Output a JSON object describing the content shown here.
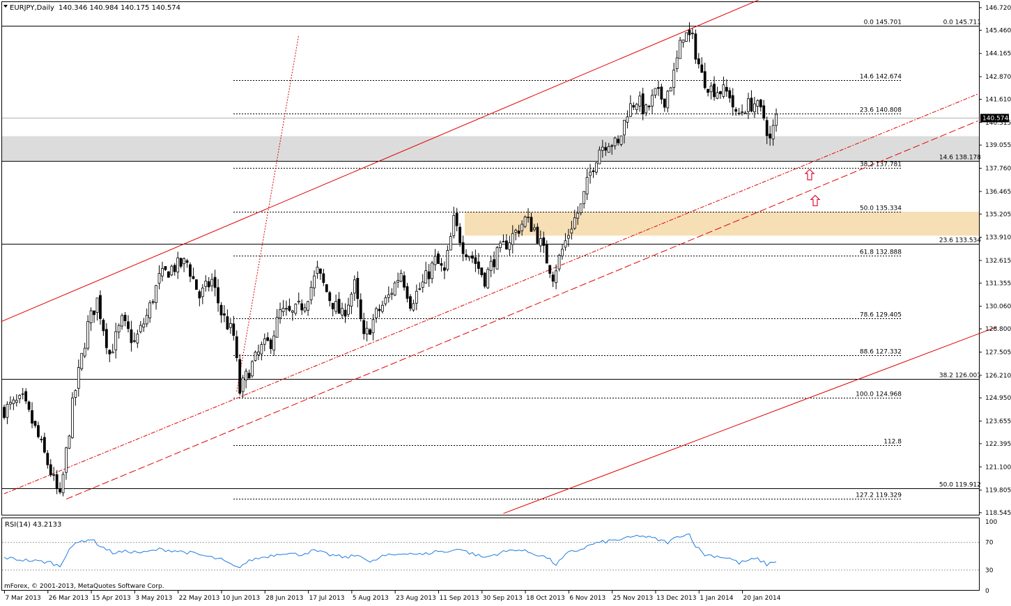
{
  "header": {
    "dropdown_icon": "triangle-down-icon",
    "symbol": "EURJPY,Daily",
    "ohlc": "140.346 140.984 140.175 140.574"
  },
  "footer": {
    "copyright": "mForex, © 2001-2013, MetaQuotes Software Corp."
  },
  "colors": {
    "candle": "#000000",
    "channel": "#e00000",
    "grid": "#000000",
    "supply_zone": "#f7dfb5",
    "grey_zone": "#dcdcdc",
    "rsi_line": "#1e7be0",
    "rsi_level": "#9a9a9a",
    "arrow": "#e0103a"
  },
  "chart_data": [
    {
      "type": "candlestick",
      "title": "EURJPY,Daily",
      "ylim": [
        118.545,
        146.72
      ],
      "y_ticks": [
        "146.720",
        "145.460",
        "144.165",
        "142.870",
        "141.610",
        "140.315",
        "139.055",
        "137.760",
        "136.465",
        "135.205",
        "133.910",
        "132.615",
        "131.355",
        "130.060",
        "128.800",
        "127.505",
        "126.210",
        "124.950",
        "123.655",
        "122.395",
        "121.100",
        "119.805",
        "118.545"
      ],
      "last_price": "140.574",
      "x_ticks": [
        "7 Mar 2013",
        "26 Mar 2013",
        "15 Apr 2013",
        "3 May 2013",
        "22 May 2013",
        "10 Jun 2013",
        "28 Jun 2013",
        "17 Jul 2013",
        "5 Aug 2013",
        "23 Aug 2013",
        "11 Sep 2013",
        "30 Sep 2013",
        "18 Oct 2013",
        "6 Nov 2013",
        "25 Nov 2013",
        "13 Dec 2013",
        "1 Jan 2014",
        "20 Jan 2014"
      ],
      "price_anchors": [
        {
          "i": 0,
          "c": 124.3
        },
        {
          "i": 6,
          "c": 124.8
        },
        {
          "i": 10,
          "c": 123.2
        },
        {
          "i": 14,
          "c": 121.3
        },
        {
          "i": 18,
          "c": 119.3
        },
        {
          "i": 22,
          "c": 124.5
        },
        {
          "i": 27,
          "c": 129.0
        },
        {
          "i": 30,
          "c": 130.4
        },
        {
          "i": 34,
          "c": 127.4
        },
        {
          "i": 38,
          "c": 129.2
        },
        {
          "i": 42,
          "c": 128.0
        },
        {
          "i": 46,
          "c": 129.5
        },
        {
          "i": 50,
          "c": 131.6
        },
        {
          "i": 54,
          "c": 132.2
        },
        {
          "i": 59,
          "c": 132.5
        },
        {
          "i": 63,
          "c": 130.6
        },
        {
          "i": 67,
          "c": 131.5
        },
        {
          "i": 70,
          "c": 129.7
        },
        {
          "i": 74,
          "c": 128.4
        },
        {
          "i": 76,
          "c": 125.3
        },
        {
          "i": 79,
          "c": 126.5
        },
        {
          "i": 83,
          "c": 127.7
        },
        {
          "i": 86,
          "c": 128.1
        },
        {
          "i": 89,
          "c": 129.7
        },
        {
          "i": 93,
          "c": 129.6
        },
        {
          "i": 97,
          "c": 130.3
        },
        {
          "i": 101,
          "c": 132.0
        },
        {
          "i": 105,
          "c": 130.5
        },
        {
          "i": 109,
          "c": 129.5
        },
        {
          "i": 113,
          "c": 131.2
        },
        {
          "i": 116,
          "c": 128.2
        },
        {
          "i": 120,
          "c": 129.6
        },
        {
          "i": 124,
          "c": 130.6
        },
        {
          "i": 128,
          "c": 132.0
        },
        {
          "i": 131,
          "c": 130.3
        },
        {
          "i": 135,
          "c": 131.3
        },
        {
          "i": 139,
          "c": 132.6
        },
        {
          "i": 142,
          "c": 131.9
        },
        {
          "i": 145,
          "c": 134.8
        },
        {
          "i": 148,
          "c": 133.4
        },
        {
          "i": 151,
          "c": 132.8
        },
        {
          "i": 155,
          "c": 131.6
        },
        {
          "i": 158,
          "c": 132.7
        },
        {
          "i": 162,
          "c": 133.6
        },
        {
          "i": 165,
          "c": 134.2
        },
        {
          "i": 168,
          "c": 134.9
        },
        {
          "i": 171,
          "c": 134.4
        },
        {
          "i": 174,
          "c": 133.1
        },
        {
          "i": 177,
          "c": 131.8
        },
        {
          "i": 180,
          "c": 133.2
        },
        {
          "i": 183,
          "c": 134.6
        },
        {
          "i": 186,
          "c": 135.6
        },
        {
          "i": 189,
          "c": 137.5
        },
        {
          "i": 192,
          "c": 138.9
        },
        {
          "i": 195,
          "c": 139.3
        },
        {
          "i": 198,
          "c": 139.0
        },
        {
          "i": 201,
          "c": 141.0
        },
        {
          "i": 204,
          "c": 141.6
        },
        {
          "i": 207,
          "c": 140.9
        },
        {
          "i": 210,
          "c": 141.9
        },
        {
          "i": 213,
          "c": 141.6
        },
        {
          "i": 216,
          "c": 143.0
        },
        {
          "i": 219,
          "c": 145.3
        },
        {
          "i": 222,
          "c": 144.9
        },
        {
          "i": 225,
          "c": 142.9
        },
        {
          "i": 228,
          "c": 142.2
        },
        {
          "i": 231,
          "c": 142.1
        },
        {
          "i": 234,
          "c": 141.9
        },
        {
          "i": 236,
          "c": 140.6
        },
        {
          "i": 239,
          "c": 141.2
        },
        {
          "i": 242,
          "c": 141.4
        },
        {
          "i": 245,
          "c": 140.6
        },
        {
          "i": 247,
          "c": 139.3
        },
        {
          "i": 249,
          "c": 140.57
        }
      ],
      "horizontal_levels": [
        {
          "price": 145.711,
          "style": "solid",
          "labels": [
            {
              "fib": "0.0",
              "value": "145.701"
            },
            {
              "fib": "0.0",
              "value": "145.711"
            }
          ]
        },
        {
          "price": 142.674,
          "style": "dotted",
          "labels": [
            {
              "fib": "14.6",
              "value": "142.674"
            }
          ]
        },
        {
          "price": 140.808,
          "style": "dotted",
          "labels": [
            {
              "fib": "23.6",
              "value": "140.808"
            }
          ]
        },
        {
          "price": 138.178,
          "style": "solid",
          "labels": [
            {
              "fib": "14.6",
              "value": "138.178"
            }
          ]
        },
        {
          "price": 137.781,
          "style": "dotted",
          "labels": [
            {
              "fib": "38.2",
              "value": "137.781"
            }
          ]
        },
        {
          "price": 135.334,
          "style": "dotted",
          "labels": [
            {
              "fib": "50.0",
              "value": "135.334"
            }
          ]
        },
        {
          "price": 133.534,
          "style": "solid",
          "labels": [
            {
              "fib": "23.6",
              "value": "133.534"
            }
          ]
        },
        {
          "price": 132.888,
          "style": "dotted",
          "labels": [
            {
              "fib": "61.8",
              "value": "132.888"
            }
          ]
        },
        {
          "price": 129.405,
          "style": "dotted",
          "labels": [
            {
              "fib": "78.6",
              "value": "129.405"
            }
          ]
        },
        {
          "price": 127.332,
          "style": "dotted",
          "labels": [
            {
              "fib": "88.6",
              "value": "127.332"
            }
          ]
        },
        {
          "price": 126.001,
          "style": "solid",
          "labels": [
            {
              "fib": "38.2",
              "value": "126.001"
            }
          ]
        },
        {
          "price": 124.968,
          "style": "dotted",
          "labels": [
            {
              "fib": "100.0",
              "value": "124.968"
            }
          ]
        },
        {
          "price": 122.33,
          "style": "dotted",
          "labels": [
            {
              "fib": "112.8",
              "value": ""
            }
          ]
        },
        {
          "price": 119.912,
          "style": "solid",
          "labels": [
            {
              "fib": "50.0",
              "value": "119.912"
            }
          ]
        },
        {
          "price": 119.329,
          "style": "dotted",
          "labels": [
            {
              "fib": "127.2",
              "value": "119.329"
            }
          ]
        }
      ],
      "zones": [
        {
          "name": "grey-zone",
          "from": 138.178,
          "to": 139.55
        },
        {
          "name": "supply-zone",
          "from": 134.0,
          "to": 135.334
        }
      ],
      "arrows": [
        {
          "price": 137.35
        },
        {
          "price": 135.9
        }
      ]
    },
    {
      "type": "line",
      "title": "RSI(14) 43.2133",
      "ylim": [
        0,
        100
      ],
      "y_ticks": [
        "100",
        "70",
        "30",
        "0"
      ],
      "levels": [
        70,
        30
      ],
      "series": [
        {
          "anchors": [
            {
              "i": 0,
              "v": 48
            },
            {
              "i": 5,
              "v": 45
            },
            {
              "i": 10,
              "v": 43
            },
            {
              "i": 15,
              "v": 41
            },
            {
              "i": 18,
              "v": 35
            },
            {
              "i": 21,
              "v": 62
            },
            {
              "i": 25,
              "v": 72
            },
            {
              "i": 28,
              "v": 75
            },
            {
              "i": 31,
              "v": 65
            },
            {
              "i": 35,
              "v": 55
            },
            {
              "i": 40,
              "v": 57
            },
            {
              "i": 45,
              "v": 55
            },
            {
              "i": 50,
              "v": 60
            },
            {
              "i": 55,
              "v": 58
            },
            {
              "i": 60,
              "v": 55
            },
            {
              "i": 65,
              "v": 50
            },
            {
              "i": 70,
              "v": 45
            },
            {
              "i": 75,
              "v": 33
            },
            {
              "i": 80,
              "v": 45
            },
            {
              "i": 85,
              "v": 50
            },
            {
              "i": 90,
              "v": 55
            },
            {
              "i": 95,
              "v": 52
            },
            {
              "i": 100,
              "v": 58
            },
            {
              "i": 105,
              "v": 52
            },
            {
              "i": 110,
              "v": 48
            },
            {
              "i": 115,
              "v": 52
            },
            {
              "i": 118,
              "v": 40
            },
            {
              "i": 122,
              "v": 50
            },
            {
              "i": 126,
              "v": 52
            },
            {
              "i": 130,
              "v": 55
            },
            {
              "i": 135,
              "v": 52
            },
            {
              "i": 140,
              "v": 58
            },
            {
              "i": 143,
              "v": 55
            },
            {
              "i": 146,
              "v": 62
            },
            {
              "i": 150,
              "v": 55
            },
            {
              "i": 155,
              "v": 48
            },
            {
              "i": 160,
              "v": 55
            },
            {
              "i": 165,
              "v": 60
            },
            {
              "i": 170,
              "v": 55
            },
            {
              "i": 175,
              "v": 48
            },
            {
              "i": 178,
              "v": 38
            },
            {
              "i": 182,
              "v": 55
            },
            {
              "i": 186,
              "v": 60
            },
            {
              "i": 190,
              "v": 68
            },
            {
              "i": 195,
              "v": 72
            },
            {
              "i": 200,
              "v": 75
            },
            {
              "i": 205,
              "v": 80
            },
            {
              "i": 210,
              "v": 75
            },
            {
              "i": 214,
              "v": 70
            },
            {
              "i": 218,
              "v": 80
            },
            {
              "i": 221,
              "v": 82
            },
            {
              "i": 223,
              "v": 65
            },
            {
              "i": 226,
              "v": 52
            },
            {
              "i": 230,
              "v": 50
            },
            {
              "i": 234,
              "v": 47
            },
            {
              "i": 237,
              "v": 40
            },
            {
              "i": 240,
              "v": 44
            },
            {
              "i": 243,
              "v": 46
            },
            {
              "i": 246,
              "v": 38
            },
            {
              "i": 249,
              "v": 43.2
            }
          ]
        }
      ]
    }
  ]
}
